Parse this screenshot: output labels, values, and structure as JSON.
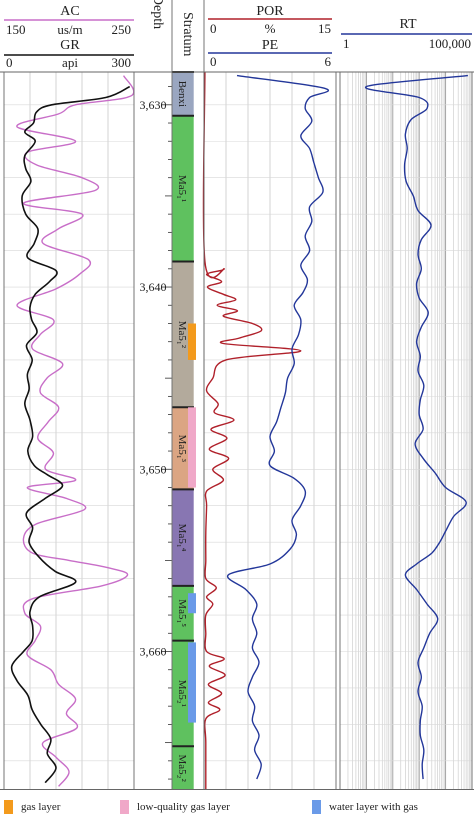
{
  "tracks": {
    "ac": {
      "title": "AC",
      "unit": "us/m",
      "min_label": "150",
      "max_label": "250",
      "color": "#c86ec8"
    },
    "gr": {
      "title": "GR",
      "unit": "api",
      "min_label": "0",
      "max_label": "300",
      "color": "#111111"
    },
    "depth": {
      "title": "Depth"
    },
    "stratum": {
      "title": "Stratum"
    },
    "por": {
      "title": "POR",
      "unit": "%",
      "min_label": "0",
      "max_label": "15",
      "color": "#b0202a"
    },
    "pe": {
      "title": "PE",
      "min_label": "0",
      "max_label": "6",
      "color": "#23379a"
    },
    "rt": {
      "title": "RT",
      "min_label": "1",
      "max_label": "100,000",
      "color": "#23379a"
    }
  },
  "chart_data": {
    "type": "line",
    "y_axis": {
      "label": "Depth",
      "range": [
        3628.2,
        3667.6
      ],
      "ticks": [
        3630,
        3640,
        3650,
        3660
      ],
      "tick_labels": [
        "3,630",
        "3,640",
        "3,650",
        "3,660"
      ]
    },
    "strata": [
      {
        "name": "Benxi",
        "top": 3628.2,
        "bottom": 3630.6,
        "color": "#9aa6c0"
      },
      {
        "name": "Ma5₁¹",
        "top": 3630.6,
        "bottom": 3638.6,
        "color": "#5fc15f"
      },
      {
        "name": "Ma5₁²",
        "top": 3638.6,
        "bottom": 3646.6,
        "color": "#b3aa9c"
      },
      {
        "name": "Ma5₁³",
        "top": 3646.6,
        "bottom": 3651.1,
        "color": "#dba583"
      },
      {
        "name": "Ma5₁⁴",
        "top": 3651.1,
        "bottom": 3656.4,
        "color": "#8876b2"
      },
      {
        "name": "Ma5₁⁵",
        "top": 3656.4,
        "bottom": 3659.4,
        "color": "#5fc15f"
      },
      {
        "name": "Ma5₂¹",
        "top": 3659.4,
        "bottom": 3665.2,
        "color": "#5fc15f"
      },
      {
        "name": "Ma5₂²",
        "top": 3665.2,
        "bottom": 3667.6,
        "color": "#5fc15f"
      }
    ],
    "interpretation_layers": [
      {
        "type": "gas",
        "top": 3642.0,
        "bottom": 3644.0
      },
      {
        "type": "low_quality_gas",
        "top": 3646.6,
        "bottom": 3651.0
      },
      {
        "type": "water_with_gas",
        "top": 3656.8,
        "bottom": 3657.9
      },
      {
        "type": "water_with_gas",
        "top": 3659.5,
        "bottom": 3663.9
      }
    ],
    "series": [
      {
        "name": "AC",
        "range": [
          150,
          250
        ],
        "scale": "linear",
        "depth": [
          3628.4,
          3629.5,
          3630.0,
          3630.5,
          3631.2,
          3632.0,
          3632.6,
          3633.3,
          3634.0,
          3634.7,
          3635.4,
          3636.0,
          3636.8,
          3637.6,
          3638.5,
          3639.3,
          3640.1,
          3641.0,
          3641.8,
          3642.6,
          3643.4,
          3644.2,
          3645.0,
          3645.8,
          3646.6,
          3647.4,
          3648.3,
          3649.1,
          3650.0,
          3650.6,
          3651.0,
          3651.6,
          3652.2,
          3653.0,
          3653.8,
          3654.6,
          3655.0,
          3655.4,
          3655.8,
          3656.4,
          3657.1,
          3657.9,
          3658.6,
          3659.4,
          3660.2,
          3661.0,
          3661.8,
          3662.6,
          3663.4,
          3664.2,
          3665.0,
          3665.8,
          3666.6,
          3667.4
        ],
        "values": [
          242,
          248,
          205,
          192,
          160,
          205,
          168,
          175,
          210,
          220,
          165,
          210,
          192,
          180,
          215,
          208,
          190,
          160,
          188,
          178,
          172,
          195,
          183,
          178,
          192,
          184,
          176,
          188,
          182,
          205,
          168,
          198,
          212,
          175,
          165,
          172,
          200,
          230,
          245,
          225,
          172,
          166,
          178,
          174,
          168,
          186,
          192,
          205,
          198,
          206,
          180,
          190,
          200,
          192
        ]
      },
      {
        "name": "GR",
        "range": [
          0,
          300
        ],
        "scale": "linear",
        "depth": [
          3629.0,
          3629.6,
          3630.0,
          3630.4,
          3631.0,
          3631.5,
          3632.0,
          3632.8,
          3633.5,
          3634.2,
          3635.0,
          3636.0,
          3636.8,
          3637.6,
          3638.4,
          3639.1,
          3639.7,
          3640.4,
          3641.1,
          3641.8,
          3642.5,
          3643.2,
          3644.0,
          3644.8,
          3645.6,
          3646.4,
          3647.3,
          3648.2,
          3649.0,
          3649.8,
          3650.3,
          3650.9,
          3651.6,
          3652.4,
          3653.2,
          3654.0,
          3654.8,
          3655.6,
          3656.2,
          3657.0,
          3657.8,
          3658.6,
          3659.4,
          3660.0,
          3660.8,
          3661.6,
          3662.4,
          3663.2,
          3664.0,
          3664.8,
          3665.6,
          3666.4,
          3667.2
        ],
        "values": [
          290,
          235,
          110,
          75,
          68,
          48,
          72,
          48,
          50,
          62,
          42,
          50,
          78,
          70,
          55,
          120,
          105,
          72,
          60,
          64,
          76,
          52,
          65,
          54,
          58,
          48,
          60,
          66,
          55,
          70,
          100,
          135,
          95,
          52,
          66,
          58,
          80,
          118,
          165,
          82,
          60,
          66,
          65,
          45,
          18,
          30,
          55,
          65,
          85,
          108,
          100,
          120,
          95
        ]
      },
      {
        "name": "POR",
        "range": [
          0,
          15
        ],
        "scale": "linear",
        "depth": [
          3628.2,
          3638.6,
          3639.0,
          3639.3,
          3639.7,
          3640.0,
          3640.4,
          3640.7,
          3641.0,
          3641.3,
          3641.6,
          3642.0,
          3642.4,
          3642.8,
          3643.1,
          3643.5,
          3644.0,
          3645.0,
          3645.7,
          3646.4,
          3646.9,
          3647.3,
          3647.8,
          3648.3,
          3648.9,
          3649.4,
          3650.0,
          3650.6,
          3651.2,
          3652.0,
          3653.5,
          3655.0,
          3656.0,
          3656.5,
          3657.0,
          3657.4,
          3658.0,
          3659.0,
          3660.0,
          3660.4,
          3660.8,
          3661.3,
          3661.8,
          3662.3,
          3662.8,
          3663.2,
          3663.7,
          3665.0,
          3667.6
        ],
        "values": [
          0.1,
          0.1,
          2.3,
          0.3,
          2.0,
          0.4,
          2.2,
          3.6,
          1.5,
          3.8,
          2.2,
          5.5,
          6.5,
          4.0,
          2.2,
          11.0,
          2.5,
          1.0,
          0.3,
          1.6,
          1.2,
          3.4,
          0.8,
          2.6,
          0.6,
          2.8,
          1.0,
          2.2,
          0.3,
          0.3,
          0.2,
          0.2,
          0.2,
          1.4,
          0.3,
          1.0,
          0.2,
          0.2,
          0.3,
          2.3,
          0.6,
          2.4,
          0.5,
          2.0,
          0.5,
          1.8,
          0.2,
          0.2,
          0.2
        ]
      },
      {
        "name": "PE",
        "range": [
          0,
          6
        ],
        "scale": "linear",
        "depth": [
          3628.4,
          3629.1,
          3629.6,
          3630.2,
          3630.9,
          3631.7,
          3632.4,
          3633.2,
          3634.0,
          3634.8,
          3635.6,
          3636.4,
          3637.2,
          3638.0,
          3638.8,
          3639.6,
          3640.3,
          3641.0,
          3641.8,
          3642.6,
          3643.4,
          3644.2,
          3645.0,
          3645.8,
          3646.6,
          3647.4,
          3648.2,
          3649.0,
          3649.8,
          3650.5,
          3651.2,
          3652.0,
          3652.8,
          3653.6,
          3654.4,
          3655.2,
          3655.8,
          3656.6,
          3657.4,
          3658.2,
          3659.0,
          3659.8,
          3660.6,
          3661.4,
          3662.2,
          3663.0,
          3663.8,
          3664.6,
          3665.4,
          3666.2,
          3667.0
        ],
        "values": [
          1.5,
          5.5,
          4.8,
          4.6,
          4.9,
          4.4,
          4.8,
          5.0,
          5.2,
          5.4,
          4.8,
          4.9,
          4.6,
          4.8,
          4.4,
          4.7,
          4.5,
          4.1,
          4.4,
          4.3,
          4.0,
          4.1,
          3.8,
          3.7,
          3.5,
          3.3,
          3.0,
          3.2,
          3.0,
          4.1,
          4.6,
          4.4,
          4.0,
          4.2,
          3.9,
          3.0,
          1.1,
          1.9,
          2.4,
          2.2,
          2.4,
          2.2,
          2.5,
          2.2,
          2.0,
          2.3,
          2.2,
          2.5,
          2.3,
          2.6,
          2.4
        ]
      },
      {
        "name": "RT",
        "range": [
          1,
          100000
        ],
        "scale": "log",
        "depth": [
          3628.4,
          3629.0,
          3629.6,
          3630.2,
          3630.8,
          3631.6,
          3632.4,
          3633.3,
          3634.2,
          3635.0,
          3635.8,
          3636.6,
          3637.4,
          3638.2,
          3639.0,
          3639.8,
          3640.6,
          3641.4,
          3642.2,
          3643.0,
          3643.8,
          3644.6,
          3645.4,
          3646.2,
          3647.0,
          3647.8,
          3648.6,
          3649.4,
          3650.2,
          3651.0,
          3651.8,
          3652.6,
          3653.4,
          3654.0,
          3654.6,
          3655.2,
          3655.8,
          3656.6,
          3657.4,
          3658.2,
          3659.0,
          3659.8,
          3660.6,
          3661.4,
          3662.2,
          3663.0,
          3663.8,
          3664.6,
          3665.4,
          3666.2,
          3667.0
        ],
        "values": [
          70000,
          10,
          1000,
          2000,
          500,
          300,
          350,
          280,
          320,
          600,
          900,
          2800,
          1200,
          900,
          1200,
          800,
          1000,
          2200,
          1200,
          800,
          1100,
          900,
          1500,
          1100,
          1000,
          1400,
          700,
          1400,
          4000,
          10000,
          60000,
          20000,
          10000,
          6000,
          3000,
          800,
          300,
          800,
          2000,
          5000,
          2500,
          1500,
          900,
          1200,
          900,
          1300,
          1100,
          1100,
          1500,
          1300,
          1400
        ]
      }
    ]
  },
  "legend": {
    "gas": {
      "label": "gas layer",
      "color": "#f39a1c"
    },
    "low_quality_gas": {
      "label": "low-quality gas layer",
      "color": "#f0a8c8"
    },
    "water_with_gas": {
      "label": "water layer with gas",
      "color": "#6a9ae8"
    }
  }
}
